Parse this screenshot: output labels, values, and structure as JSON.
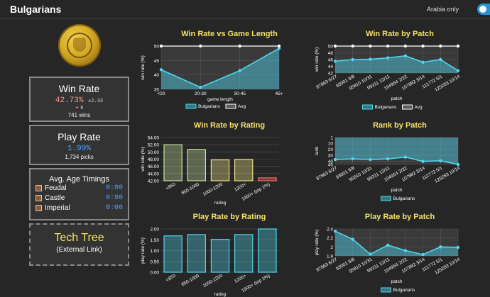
{
  "header": {
    "title": "Bulgarians",
    "toggle_label": "Arabia only",
    "toggle_on": true
  },
  "win_panel": {
    "title": "Win Rate",
    "value": "42.73%",
    "pm": "±2.33",
    "rank_arrow": "⏷",
    "rank_value": "6",
    "wins": "741 wins"
  },
  "play_panel": {
    "title": "Play Rate",
    "value": "1.99%",
    "picks": "1,734 picks"
  },
  "timings": {
    "title": "Avg. Age Timings",
    "rows": [
      {
        "name": "Feudal",
        "time": "0:00"
      },
      {
        "name": "Castle",
        "time": "0:00"
      },
      {
        "name": "Imperial",
        "time": "0:00"
      }
    ]
  },
  "tech_tree": {
    "title": "Tech Tree",
    "subtitle": "(External Link)"
  },
  "colors": {
    "accent": "#4fd6f0",
    "title_yellow": "#f5e16a",
    "bar_green": "#c5e3a0",
    "bar_yellow": "#f0e48a",
    "bar_red": "#ff6b6b"
  },
  "chart_data": [
    {
      "id": "wr_length",
      "type": "line",
      "title": "Win Rate vs Game Length",
      "xlabel": "game length",
      "ylabel": "win rate (%)",
      "categories": [
        "<20",
        "20-30",
        "30-45",
        "45+"
      ],
      "ylim": [
        35,
        50
      ],
      "yticks": [
        35,
        40,
        45,
        50
      ],
      "series": [
        {
          "name": "Bulgarians",
          "values": [
            41.8,
            35.7,
            41.5,
            49.2
          ],
          "color": "#4fd6f0",
          "fill": true
        },
        {
          "name": "Avg",
          "values": [
            50,
            50,
            50,
            50
          ],
          "color": "#ffffff",
          "fill": false
        }
      ],
      "legend": "bottom"
    },
    {
      "id": "wr_patch",
      "type": "line",
      "title": "Win Rate by Patch",
      "xlabel": "patch",
      "ylabel": "win rate (%)",
      "categories": [
        "87863 6/27",
        "93001 9/8",
        "95810 10/31",
        "99311 12/11",
        "104954 2/22",
        "107882 3/14",
        "111772 5/1",
        "125283 10/14"
      ],
      "ylim": [
        42,
        50
      ],
      "yticks": [
        42,
        44,
        46,
        48,
        50
      ],
      "series": [
        {
          "name": "Bulgarians",
          "values": [
            45.5,
            46.0,
            46.1,
            46.5,
            47.1,
            45.2,
            46.0,
            42.7
          ],
          "color": "#4fd6f0",
          "fill": true
        },
        {
          "name": "Avg",
          "values": [
            50,
            50,
            50,
            50,
            50,
            50,
            50,
            50
          ],
          "color": "#ffffff",
          "fill": false
        }
      ],
      "legend": "bottom"
    },
    {
      "id": "wr_rating",
      "type": "bar",
      "title": "Win Rate by Rating",
      "xlabel": "rating",
      "ylabel": "win rate (%)",
      "categories": [
        "<850",
        "850-1000",
        "1000-1200",
        "1200+",
        "1900+ (top 1%)"
      ],
      "values": [
        52.0,
        50.7,
        47.8,
        47.9,
        42.8
      ],
      "bar_colors": [
        "#c5e3a0",
        "#c5e3a0",
        "#f0e48a",
        "#f0e48a",
        "#ff6b6b"
      ],
      "ylim": [
        42,
        54
      ],
      "yticks": [
        42.0,
        44.0,
        46.0,
        48.0,
        50.0,
        52.0,
        54.0
      ],
      "tick_format": "1dp"
    },
    {
      "id": "rank_patch",
      "type": "line",
      "title": "Rank by Patch",
      "xlabel": "patch",
      "ylabel": "rank",
      "categories": [
        "87863 6/27",
        "93001 9/8",
        "95810 10/31",
        "99311 12/11",
        "104954 2/22",
        "107882 3/14",
        "111772 5/1",
        "125283 10/14"
      ],
      "ylim": [
        45,
        1
      ],
      "yticks": [
        1,
        10,
        20,
        30,
        40,
        45
      ],
      "inverted": true,
      "series": [
        {
          "name": "Bulgarians",
          "values": [
            37,
            36,
            37,
            36,
            33,
            40,
            39,
            45
          ],
          "color": "#4fd6f0",
          "fill": true,
          "fill_above": true
        }
      ],
      "legend": "bottom"
    },
    {
      "id": "pr_rating",
      "type": "bar",
      "title": "Play Rate by Rating",
      "xlabel": "rating",
      "ylabel": "play rate (%)",
      "categories": [
        "<850",
        "850-1000",
        "1000-1200",
        "1200+",
        "1900+ (top 1%)"
      ],
      "values": [
        1.68,
        1.74,
        1.52,
        1.74,
        2.0
      ],
      "bar_colors": [
        "#4fd6f0",
        "#4fd6f0",
        "#4fd6f0",
        "#4fd6f0",
        "#4fd6f0"
      ],
      "ylim": [
        0,
        2
      ],
      "yticks": [
        0,
        0.5,
        1.0,
        1.5,
        2.0
      ],
      "tick_format": "2dp"
    },
    {
      "id": "pr_patch",
      "type": "line",
      "title": "Play Rate by Patch",
      "xlabel": "patch",
      "ylabel": "play rate (%)",
      "categories": [
        "87863 6/27",
        "93001 9/8",
        "95810 10/31",
        "99311 12/11",
        "104954 2/22",
        "107882 3/14",
        "111772 5/1",
        "125283 10/14"
      ],
      "ylim": [
        1.8,
        2.4
      ],
      "yticks": [
        1.8,
        2.0,
        2.2,
        2.4
      ],
      "series": [
        {
          "name": "Bulgarians",
          "values": [
            2.35,
            2.17,
            1.84,
            2.04,
            1.92,
            1.83,
            2.0,
            1.99
          ],
          "color": "#4fd6f0",
          "fill": true
        }
      ],
      "legend": "bottom"
    }
  ]
}
